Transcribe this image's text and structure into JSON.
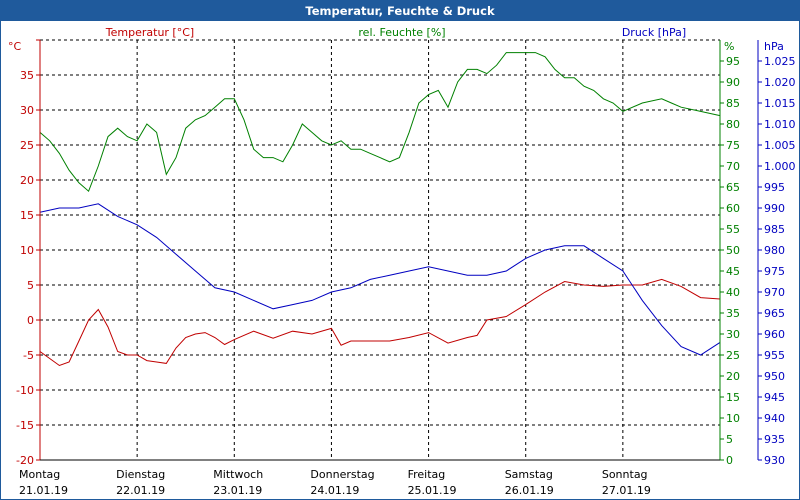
{
  "window": {
    "title": "Temperatur, Feuchte & Druck"
  },
  "colors": {
    "temperature": "#c00000",
    "humidity": "#008000",
    "pressure": "#0000c0",
    "grid": "#000000",
    "titlebar": "#1f5a9c"
  },
  "chart_data": {
    "type": "line",
    "title": "Temperatur, Feuchte & Druck",
    "x_axis": {
      "labels": [
        {
          "day": "Montag",
          "date": "21.01.19"
        },
        {
          "day": "Dienstag",
          "date": "22.01.19"
        },
        {
          "day": "Mittwoch",
          "date": "23.01.19"
        },
        {
          "day": "Donnerstag",
          "date": "24.01.19"
        },
        {
          "day": "Freitag",
          "date": "25.01.19"
        },
        {
          "day": "Samstag",
          "date": "26.01.19"
        },
        {
          "day": "Sonntag",
          "date": "27.01.19"
        }
      ]
    },
    "axes": {
      "temperature": {
        "label": "Temperatur [°C]",
        "unit": "°C",
        "range": [
          -20,
          40
        ],
        "ticks": [
          40,
          35,
          30,
          25,
          20,
          15,
          10,
          5,
          0,
          -5,
          -10,
          -15,
          -20
        ],
        "tick_labels": [
          "",
          "35",
          "30",
          "25",
          "20",
          "15",
          "10",
          "5",
          "0",
          "-5",
          "-10",
          "-15",
          "-20"
        ]
      },
      "humidity": {
        "label": "rel. Feuchte [%]",
        "unit": "%",
        "range": [
          0,
          100
        ],
        "ticks": [
          95,
          90,
          85,
          80,
          75,
          70,
          65,
          60,
          55,
          50,
          45,
          40,
          35,
          30,
          25,
          20,
          15,
          10,
          5,
          0
        ],
        "tick_labels": [
          "95",
          "90",
          "85",
          "80",
          "75",
          "70",
          "65",
          "60",
          "55",
          "50",
          "45",
          "40",
          "35",
          "30",
          "25",
          "20",
          "15",
          "10",
          "5",
          "0"
        ]
      },
      "pressure": {
        "label": "Druck [hPa]",
        "unit": "hPa",
        "range": [
          930,
          1030
        ],
        "ticks": [
          1025,
          1020,
          1015,
          1010,
          1005,
          1000,
          995,
          990,
          985,
          980,
          975,
          970,
          965,
          960,
          955,
          950,
          945,
          940,
          935,
          930
        ],
        "tick_labels": [
          "1.025",
          "1.020",
          "1.015",
          "1.010",
          "1.005",
          "1.000",
          "995",
          "990",
          "985",
          "980",
          "975",
          "970",
          "965",
          "960",
          "955",
          "950",
          "945",
          "940",
          "935",
          "930"
        ]
      }
    },
    "grid": true,
    "series": [
      {
        "name": "Temperatur [°C]",
        "axis": "temperature",
        "color": "#c00000",
        "x": [
          0,
          0.1,
          0.2,
          0.3,
          0.4,
          0.5,
          0.6,
          0.7,
          0.8,
          0.9,
          1.0,
          1.1,
          1.2,
          1.3,
          1.4,
          1.5,
          1.6,
          1.7,
          1.8,
          1.9,
          2.0,
          2.2,
          2.4,
          2.6,
          2.8,
          3.0,
          3.1,
          3.2,
          3.4,
          3.6,
          3.8,
          4.0,
          4.2,
          4.4,
          4.5,
          4.6,
          4.8,
          5.0,
          5.2,
          5.4,
          5.6,
          5.8,
          6.0,
          6.2,
          6.4,
          6.6,
          6.8,
          7.0
        ],
        "values": [
          -4.5,
          -5.5,
          -6.5,
          -6,
          -3,
          0,
          1.5,
          -1,
          -4.5,
          -5,
          -5,
          -5.8,
          -6,
          -6.2,
          -4,
          -2.5,
          -2,
          -1.8,
          -2.5,
          -3.5,
          -2.8,
          -1.6,
          -2.6,
          -1.6,
          -2,
          -1.2,
          -3.6,
          -3,
          -3,
          -3,
          -2.5,
          -1.8,
          -3.3,
          -2.5,
          -2.2,
          0,
          0.5,
          2.2,
          4,
          5.5,
          5,
          4.8,
          5,
          5,
          5.8,
          4.8,
          3.2,
          3
        ]
      },
      {
        "name": "rel. Feuchte [%]",
        "axis": "humidity",
        "color": "#008000",
        "x": [
          0,
          0.1,
          0.2,
          0.3,
          0.4,
          0.5,
          0.6,
          0.7,
          0.8,
          0.9,
          1.0,
          1.1,
          1.2,
          1.3,
          1.4,
          1.5,
          1.6,
          1.7,
          1.8,
          1.9,
          2.0,
          2.1,
          2.2,
          2.3,
          2.4,
          2.5,
          2.6,
          2.7,
          2.8,
          2.9,
          3.0,
          3.1,
          3.2,
          3.3,
          3.4,
          3.5,
          3.6,
          3.7,
          3.8,
          3.9,
          4.0,
          4.1,
          4.2,
          4.3,
          4.4,
          4.5,
          4.6,
          4.7,
          4.8,
          4.9,
          5.0,
          5.1,
          5.2,
          5.3,
          5.4,
          5.5,
          5.6,
          5.7,
          5.8,
          5.9,
          6.0,
          6.2,
          6.4,
          6.5,
          6.6,
          6.8,
          7.0
        ],
        "values": [
          78,
          76,
          73,
          69,
          66,
          64,
          70,
          77,
          79,
          77,
          76,
          80,
          78,
          68,
          72,
          79,
          81,
          82,
          84,
          86,
          86,
          81,
          74,
          72,
          72,
          71,
          75,
          80,
          78,
          76,
          75,
          76,
          74,
          74,
          73,
          72,
          71,
          72,
          78,
          85,
          87,
          88,
          84,
          90,
          93,
          93,
          92,
          94,
          97,
          97,
          97,
          97,
          96,
          93,
          91,
          91,
          89,
          88,
          86,
          85,
          83,
          85,
          86,
          85,
          84,
          83,
          82
        ]
      },
      {
        "name": "Druck [hPa]",
        "axis": "pressure",
        "color": "#0000c0",
        "x": [
          0,
          0.2,
          0.4,
          0.6,
          0.8,
          1.0,
          1.2,
          1.4,
          1.6,
          1.8,
          2.0,
          2.2,
          2.4,
          2.6,
          2.8,
          3.0,
          3.2,
          3.4,
          3.6,
          3.8,
          4.0,
          4.2,
          4.4,
          4.6,
          4.8,
          5.0,
          5.2,
          5.4,
          5.6,
          5.8,
          6.0,
          6.2,
          6.4,
          6.6,
          6.8,
          7.0
        ],
        "values": [
          989,
          990,
          990,
          991,
          988,
          986,
          983,
          979,
          975,
          971,
          970,
          968,
          966,
          967,
          968,
          970,
          971,
          973,
          974,
          975,
          976,
          975,
          974,
          974,
          975,
          978,
          980,
          981,
          981,
          978,
          975,
          968,
          962,
          957,
          955,
          958
        ]
      }
    ]
  }
}
